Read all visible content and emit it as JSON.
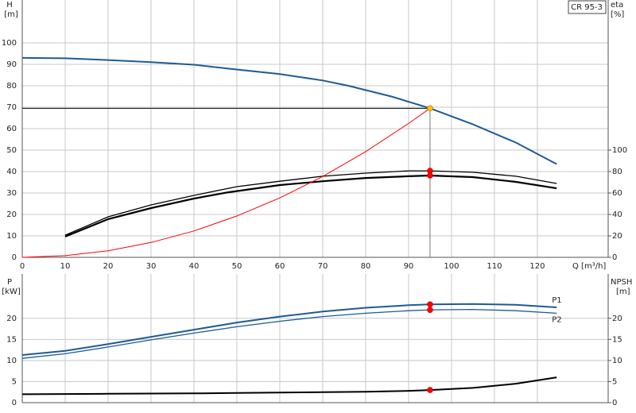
{
  "chart_data": [
    {
      "type": "line",
      "title": "CR 95-3",
      "ylabel": "H",
      "yunit": "[m]",
      "y2label": "eta",
      "y2unit": "[%]",
      "xlabel": "Q [m³/h]",
      "xlim": [
        0,
        136.5
      ],
      "xticks": [
        0,
        10,
        20,
        30,
        40,
        50,
        60,
        70,
        80,
        90,
        100,
        110,
        120
      ],
      "xtick_labels": true,
      "ylim": [
        0,
        120
      ],
      "yticks": [
        0,
        10,
        20,
        30,
        40,
        50,
        60,
        70,
        80,
        90,
        100
      ],
      "y2lim": [
        0,
        240
      ],
      "y2ticks": [
        0,
        20,
        40,
        60,
        80,
        100
      ],
      "grid": true,
      "duty_point_x": 95,
      "duty_lines": true,
      "series": [
        {
          "color": "#1f5a96",
          "width": 2,
          "point_color": "#ffc000",
          "x": [
            0,
            10,
            20,
            30,
            40,
            48,
            60,
            70,
            76,
            86,
            95,
            105,
            115,
            124.5
          ],
          "values": [
            93,
            92.8,
            92,
            91,
            89.8,
            88,
            85.5,
            82.5,
            80,
            75,
            69.5,
            62,
            53.5,
            43.5
          ]
        },
        {
          "color": "#000000",
          "width": 1.3,
          "axis": "y2",
          "point_color": "#ff0000",
          "x": [
            10,
            20,
            30,
            40,
            50,
            60,
            70,
            80,
            90,
            95,
            105,
            115,
            124.5
          ],
          "values": [
            20.7,
            37.8,
            48.9,
            57.8,
            65.9,
            71,
            75.6,
            78.5,
            80.7,
            80.7,
            79.3,
            75.6,
            68.9
          ]
        },
        {
          "color": "#000000",
          "width": 2.2,
          "axis": "y2",
          "point_color": "#ff0000",
          "x": [
            10,
            20,
            30,
            40,
            48,
            60,
            70,
            80,
            90,
            95,
            105,
            115,
            124.5
          ],
          "values": [
            19.3,
            35.6,
            45.9,
            54.8,
            60.7,
            67.4,
            71,
            74,
            75.6,
            76.3,
            74.8,
            70.4,
            64.4
          ]
        },
        {
          "color": "#ff0000",
          "width": 1,
          "x": [
            0,
            10,
            20,
            30,
            40,
            50,
            60,
            70,
            80,
            90,
            95
          ],
          "values": [
            0,
            0.77,
            3.08,
            6.93,
            12.3,
            19.3,
            27.7,
            37.7,
            49.3,
            62.4,
            69.5
          ]
        }
      ]
    },
    {
      "type": "line",
      "ylabel": "P",
      "yunit": "[kW]",
      "y2label": "NPSH",
      "y2unit": "[m]",
      "xlim": [
        0,
        136.5
      ],
      "xticks": [
        0,
        10,
        20,
        30,
        40,
        50,
        60,
        70,
        80,
        90,
        100,
        110,
        120
      ],
      "xtick_labels": false,
      "ylim": [
        0,
        30.5
      ],
      "yticks": [
        0,
        5,
        10,
        15,
        20
      ],
      "y2lim": [
        0,
        30.5
      ],
      "y2ticks": [
        0,
        5,
        10,
        15,
        20
      ],
      "grid": true,
      "duty_point_x": 95,
      "duty_lines": false,
      "series": [
        {
          "name": "P1",
          "color": "#1f5a96",
          "width": 2,
          "point_color": "#ff0000",
          "x": [
            0,
            10,
            20,
            30,
            40,
            50,
            60,
            70,
            80,
            90,
            95,
            105,
            115,
            124.5
          ],
          "values": [
            11.3,
            12.3,
            13.9,
            15.6,
            17.3,
            19,
            20.4,
            21.6,
            22.5,
            23.1,
            23.3,
            23.4,
            23.2,
            22.6
          ]
        },
        {
          "name": "P2",
          "color": "#1f5a96",
          "width": 1.3,
          "point_color": "#ff0000",
          "x": [
            0,
            10,
            20,
            30,
            40,
            50,
            60,
            70,
            80,
            90,
            95,
            105,
            115,
            124.5
          ],
          "values": [
            10.5,
            11.6,
            13.2,
            14.9,
            16.5,
            18,
            19.3,
            20.4,
            21.2,
            21.8,
            22,
            22.1,
            21.8,
            21.2
          ]
        },
        {
          "color": "#000000",
          "width": 2,
          "axis": "y2",
          "point_color": "#ff0000",
          "x": [
            0,
            20,
            40,
            50,
            60,
            70,
            80,
            90,
            95,
            105,
            115,
            124.5
          ],
          "values": [
            2,
            2.1,
            2.2,
            2.3,
            2.4,
            2.5,
            2.6,
            2.8,
            3,
            3.5,
            4.5,
            6
          ]
        }
      ]
    }
  ]
}
